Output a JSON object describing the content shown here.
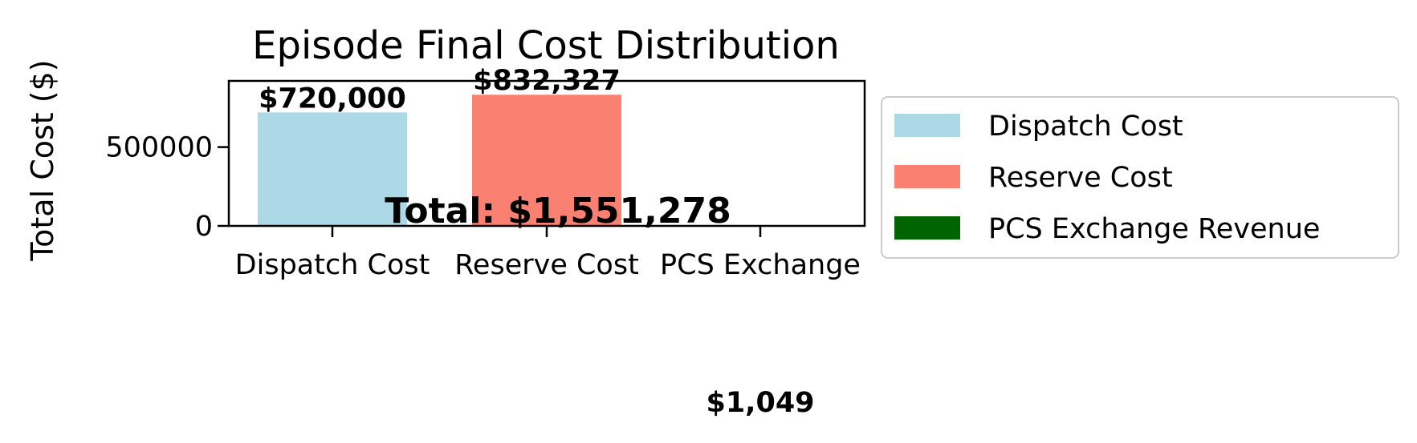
{
  "chart_data": {
    "type": "bar",
    "title": "Episode Final Cost Distribution",
    "xlabel": "",
    "ylabel": "Total Cost ($)",
    "categories": [
      "Dispatch Cost",
      "Reserve Cost",
      "PCS Exchange"
    ],
    "values": [
      720000,
      832327,
      -1049
    ],
    "bar_labels": [
      "$720,000",
      "$832,327",
      "$1,049"
    ],
    "colors": [
      "#add8e6",
      "#fa8072",
      "#006400"
    ],
    "yticks": [
      0,
      500000
    ],
    "ytick_labels": [
      "0",
      "500000"
    ],
    "ylim": [
      0,
      920000
    ],
    "annotation": "Total: $1,551,278",
    "grid": false,
    "legend": {
      "position": "outside-right",
      "entries": [
        {
          "label": "Dispatch Cost",
          "color": "#add8e6"
        },
        {
          "label": "Reserve Cost",
          "color": "#fa8072"
        },
        {
          "label": "PCS Exchange Revenue",
          "color": "#006400"
        }
      ]
    }
  }
}
